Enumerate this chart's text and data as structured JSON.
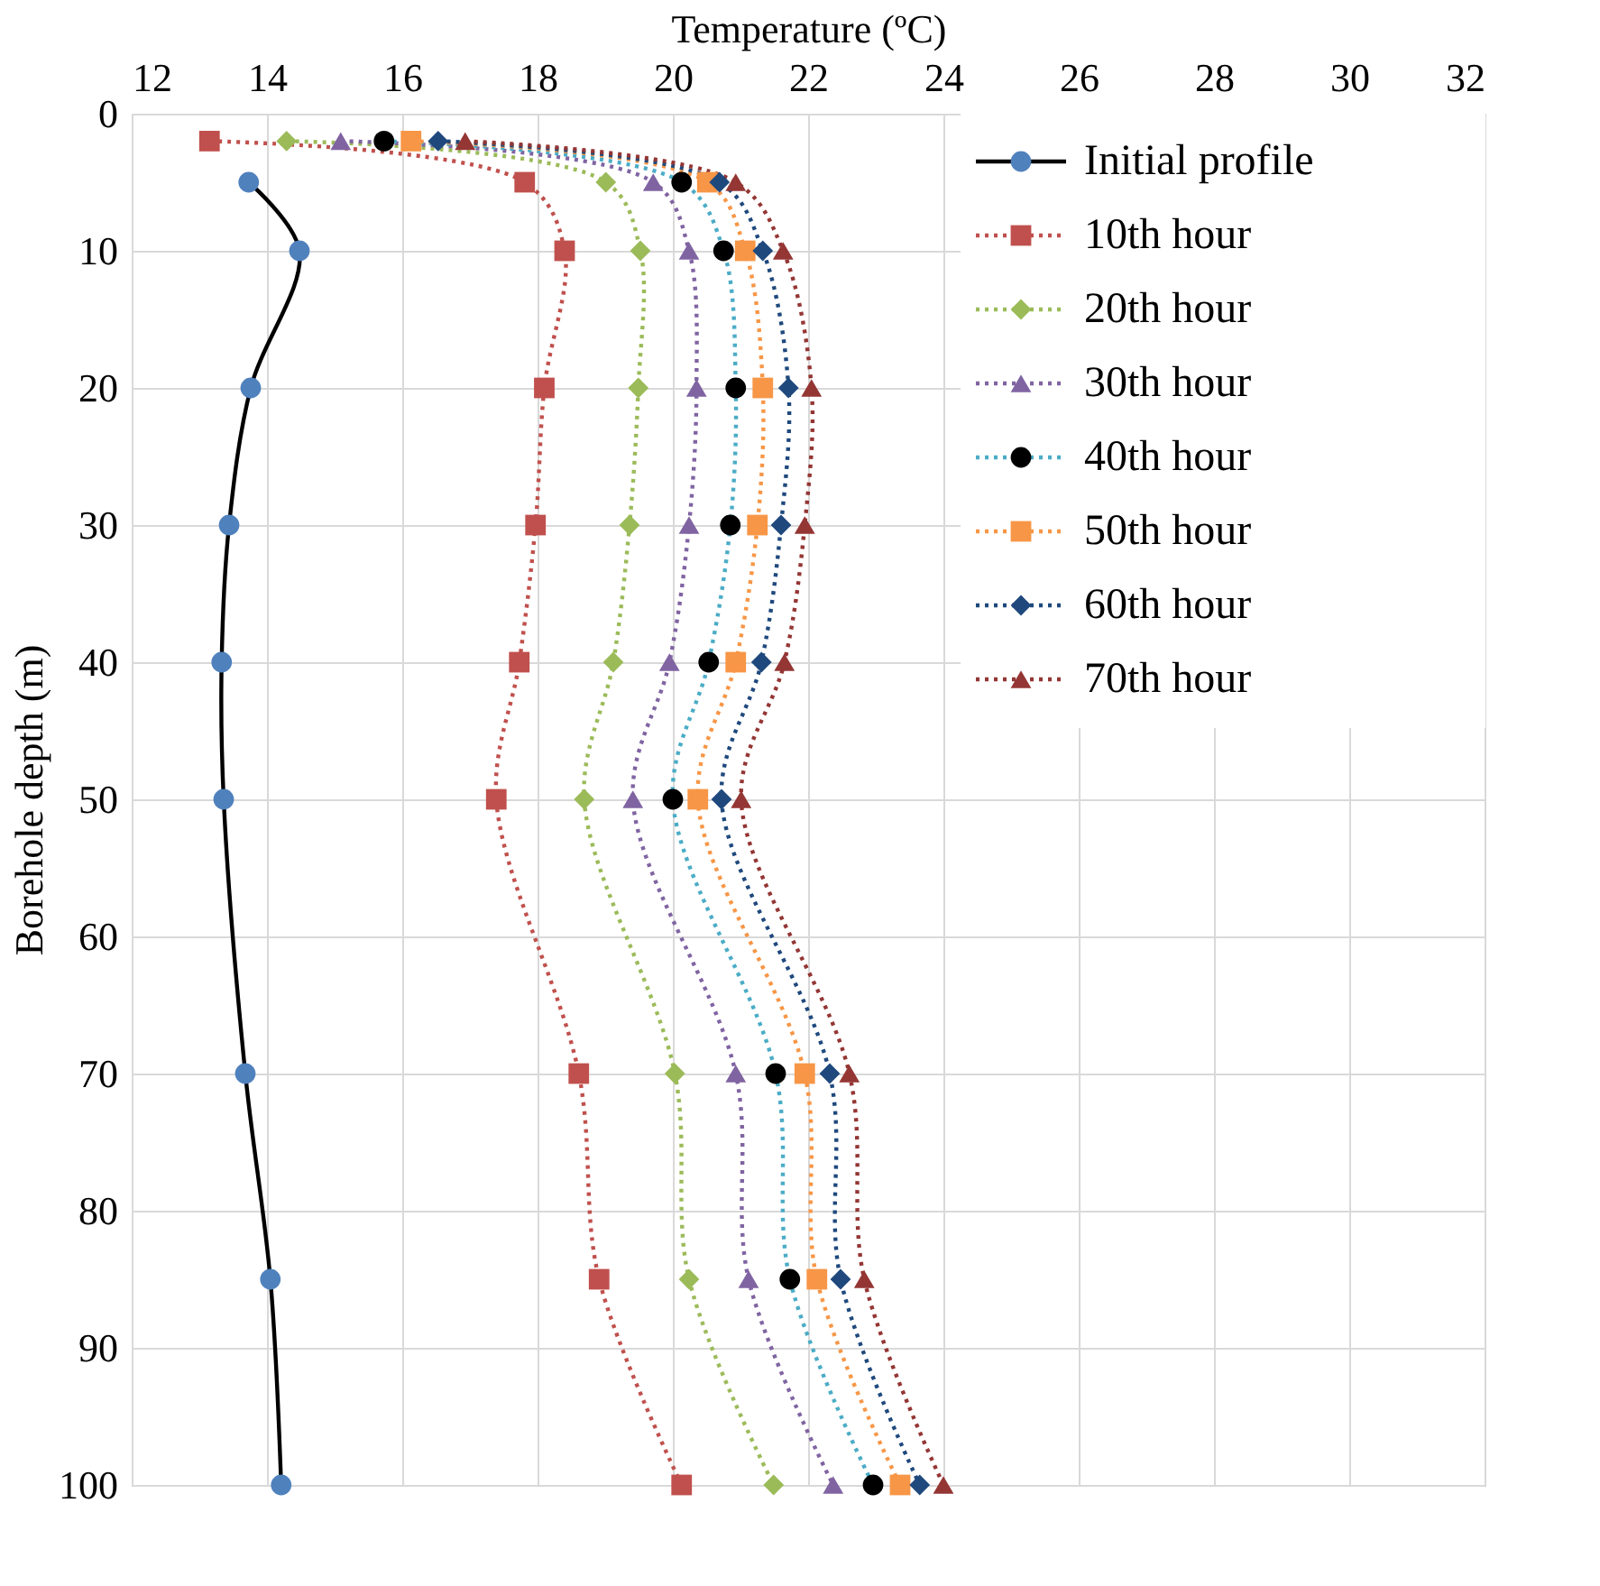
{
  "chart_data": {
    "type": "line",
    "xlabel": "Temperature (ºC)",
    "ylabel": "Borehole depth (m)",
    "xlim": [
      12,
      32
    ],
    "xticks": [
      12,
      14,
      16,
      18,
      20,
      22,
      24,
      26,
      28,
      30,
      32
    ],
    "ylim": [
      100,
      0
    ],
    "yticks": [
      0,
      10,
      20,
      30,
      40,
      50,
      60,
      70,
      80,
      90,
      100
    ],
    "grid": true,
    "legend": "top right",
    "series": [
      {
        "name": "Initial profile",
        "color": "#000000",
        "colors": [
          "#4f81bd",
          "#4f81bd",
          "#4f81bd",
          "#4f81bd",
          "#4f81bd",
          "#4f81bd",
          "#4f81bd",
          "#4f81bd",
          "#4f81bd"
        ],
        "marker": "circle",
        "line_style": "solid",
        "x": [
          13.73,
          14.48,
          13.76,
          13.44,
          13.33,
          13.36,
          13.68,
          14.05,
          14.21
        ],
        "values": [
          5,
          10,
          20,
          30,
          40,
          50,
          70,
          85,
          100
        ]
      },
      {
        "name": "10th hour",
        "color": "#c0504d",
        "marker": "square",
        "line_style": "dotted",
        "x": [
          13.15,
          17.81,
          18.4,
          18.1,
          17.97,
          17.73,
          17.39,
          18.61,
          18.91,
          20.13
        ],
        "values": [
          2,
          5,
          10,
          20,
          30,
          40,
          50,
          70,
          85,
          100
        ]
      },
      {
        "name": "20th hour",
        "color": "#9bbb59",
        "marker": "diamond",
        "line_style": "dotted",
        "x": [
          14.29,
          19.01,
          19.52,
          19.49,
          19.36,
          19.12,
          18.69,
          20.03,
          20.24,
          21.49
        ],
        "values": [
          2,
          5,
          10,
          20,
          30,
          40,
          50,
          70,
          85,
          100
        ]
      },
      {
        "name": "30th hour",
        "color": "#8064a2",
        "marker": "triangle",
        "line_style": "dotted",
        "x": [
          15.09,
          19.71,
          20.24,
          20.35,
          20.24,
          19.95,
          19.41,
          20.93,
          21.12,
          22.37
        ],
        "values": [
          2,
          5,
          10,
          20,
          30,
          40,
          50,
          70,
          85,
          100
        ]
      },
      {
        "name": "40th hour",
        "color": "#4bacc6",
        "colors": [
          "#000000",
          "#000000",
          "#000000",
          "#000000",
          "#000000",
          "#000000",
          "#000000",
          "#000000",
          "#000000",
          "#000000"
        ],
        "marker": "circle",
        "line_style": "dotted",
        "x": [
          15.73,
          20.13,
          20.75,
          20.93,
          20.85,
          20.53,
          20.0,
          21.52,
          21.73,
          22.96
        ],
        "values": [
          2,
          5,
          10,
          20,
          30,
          40,
          50,
          70,
          85,
          100
        ]
      },
      {
        "name": "50th hour",
        "color": "#f79646",
        "marker": "square",
        "line_style": "dotted",
        "x": [
          16.13,
          20.51,
          21.07,
          21.33,
          21.25,
          20.93,
          20.37,
          21.95,
          22.13,
          23.36
        ],
        "values": [
          2,
          5,
          10,
          20,
          30,
          40,
          50,
          70,
          85,
          100
        ]
      },
      {
        "name": "60th hour",
        "color": "#1f497d",
        "marker": "diamond",
        "line_style": "dotted",
        "x": [
          16.53,
          20.69,
          21.33,
          21.71,
          21.6,
          21.31,
          20.72,
          22.32,
          22.48,
          23.65
        ],
        "values": [
          2,
          5,
          10,
          20,
          30,
          40,
          50,
          70,
          85,
          100
        ]
      },
      {
        "name": "70th hour",
        "color": "#943634",
        "marker": "triangle",
        "line_style": "dotted",
        "x": [
          16.93,
          20.93,
          21.63,
          22.05,
          21.95,
          21.65,
          21.01,
          22.61,
          22.83,
          24.0
        ],
        "values": [
          2,
          5,
          10,
          20,
          30,
          40,
          50,
          70,
          85,
          100
        ]
      }
    ]
  }
}
